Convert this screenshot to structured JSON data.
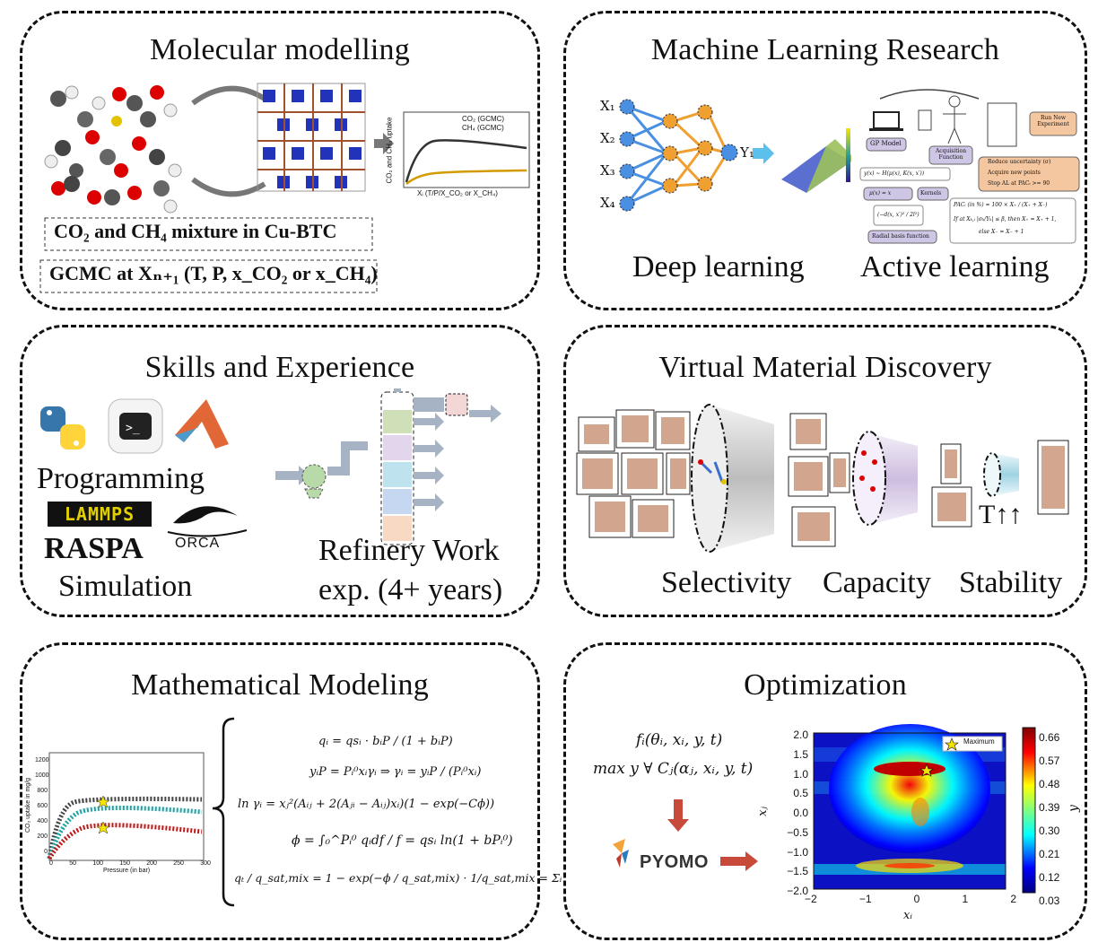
{
  "panels": {
    "molecular": {
      "title": "Molecular modelling",
      "box1": "CO₂ and CH₄ mixture in Cu-BTC",
      "box2": "GCMC at Xₙ₊₁ (T, P, x_CO₂ or x_CH₄)",
      "plot_legend": [
        "CO₂ (GCMC)",
        "CH₄ (GCMC)"
      ],
      "plot_xlabel": "Xᵢ (T/P/X_CO₂ or X_CH₄)",
      "plot_ylabel": "CO₂ and CH₄ uptake"
    },
    "ml": {
      "title": "Machine Learning Research",
      "inputs": [
        "X₁",
        "X₂",
        "X₃",
        "X₄"
      ],
      "output": "Y₁",
      "deep": "Deep learning",
      "active": "Active learning",
      "gp_model": "GP Model",
      "acquisition": "Acquisition Function",
      "run_new": "Run New Experiment",
      "reduce_list": [
        "Reduce uncertainty (σ)",
        "Acquire new points",
        "Stop AL at PACᵢ >= 90"
      ],
      "kernels": "Kernels",
      "mu": "μ(x) = x",
      "rbf": "Radial basis function",
      "gp_eq": "y(x) ~ H(μ(x), K(x, x′))",
      "rbf_eq": "(−d(x, x′)² / 2l²)",
      "pac_eq": "PACᵢ (in %) = 100 × X₊ / (X₊ + X₋)",
      "cond_eq": "If at Xₖ,ᵢ |σₖ/Yₖ| ≤ β, then X₊ = X₊ + 1,",
      "else_eq": "else X₋ = X₋ + 1"
    },
    "skills": {
      "title": "Skills and Experience",
      "programming": "Programming",
      "lammps": "LAMMPS",
      "raspa": "RASPA",
      "orca": "ORCA",
      "simulation": "Simulation",
      "refinery1": "Refinery Work",
      "refinery2": "exp. (4+ years)"
    },
    "virtual": {
      "title": "Virtual Material Discovery",
      "selectivity": "Selectivity",
      "capacity": "Capacity",
      "stability": "Stability",
      "temp": "T↑↑"
    },
    "math": {
      "title": "Mathematical Modeling",
      "eq1": "qᵢ = qsᵢ · bᵢP / (1 + bᵢP)",
      "eq2": "yᵢP = Pᵢ⁰xᵢγᵢ ⇒ γᵢ = yᵢP / (Pᵢ⁰xᵢ)",
      "eq3": "ln γᵢ = xⱼ²(Aᵢⱼ + 2(Aⱼᵢ − Aᵢⱼ)xᵢ)(1 − exp(−Cϕ))",
      "eq4": "ϕ = ∫₀^Pᵢ⁰ qᵢdf / f = qsᵢ ln(1 + bPᵢ⁰)",
      "eq5": "qₜ / q_sat,mix = 1 − exp(−ϕ / q_sat,mix) · 1/q_sat,mix = Σᵢ xᵢ / qsᵢ",
      "plot_xlabel": "Pressure (in bar)",
      "plot_ylabel": "CO₂ uptake in mg/g",
      "yticks": [
        "0",
        "200",
        "400",
        "600",
        "800",
        "1000",
        "1200"
      ],
      "xticks": [
        "0",
        "50",
        "100",
        "150",
        "200",
        "250",
        "300"
      ]
    },
    "opt": {
      "title": "Optimization",
      "eq1": "fᵢ(θᵢ, xᵢ, y, t)",
      "eq2": "max y ∀ Cⱼ(αⱼ, xᵢ, y, t)",
      "pyomo": "PYOMO",
      "xlabel": "xᵢ",
      "ylabel": "xⱼ",
      "cbar_label": "y",
      "legend": "Maximum",
      "xticks": [
        "−2",
        "−1",
        "0",
        "1",
        "2"
      ],
      "yticks": [
        "2.0",
        "1.5",
        "1.0",
        "0.5",
        "0.0",
        "−0.5",
        "−1.0",
        "−1.5",
        "−2.0"
      ],
      "cbar_ticks": [
        "0.66",
        "0.57",
        "0.48",
        "0.39",
        "0.30",
        "0.21",
        "0.12",
        "0.03"
      ],
      "colors": [
        "#00007f",
        "#0000ff",
        "#0080ff",
        "#00ffff",
        "#80ff80",
        "#ffff00",
        "#ff8000",
        "#ff0000",
        "#7f0000"
      ]
    }
  }
}
